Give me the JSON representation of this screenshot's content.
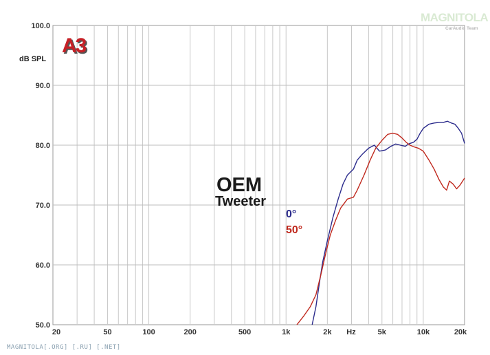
{
  "chart_data": {
    "type": "line",
    "title": "",
    "xscale": "log",
    "xlim": [
      20,
      20000
    ],
    "ylim": [
      50,
      100
    ],
    "ylabel": "dB SPL",
    "xunit_label": "Hz",
    "grid": true,
    "y_ticks": [
      "100.0",
      "90.0",
      "80.0",
      "70.0",
      "60.0",
      "50.0"
    ],
    "x_ticks": [
      {
        "v": 20,
        "label": "20"
      },
      {
        "v": 50,
        "label": "50"
      },
      {
        "v": 100,
        "label": "100"
      },
      {
        "v": 200,
        "label": "200"
      },
      {
        "v": 500,
        "label": "500"
      },
      {
        "v": 1000,
        "label": "1k"
      },
      {
        "v": 2000,
        "label": "2k"
      },
      {
        "v": 5000,
        "label": "5k"
      },
      {
        "v": 10000,
        "label": "10k"
      },
      {
        "v": 20000,
        "label": "20k"
      }
    ],
    "series": [
      {
        "name": "0°",
        "color": "#2b2b8c",
        "points": [
          [
            1550,
            50
          ],
          [
            1650,
            53
          ],
          [
            1750,
            57
          ],
          [
            1850,
            60.5
          ],
          [
            2000,
            64
          ],
          [
            2200,
            68
          ],
          [
            2400,
            71
          ],
          [
            2600,
            73.5
          ],
          [
            2800,
            75
          ],
          [
            3100,
            76
          ],
          [
            3300,
            77.5
          ],
          [
            3600,
            78.5
          ],
          [
            4000,
            79.5
          ],
          [
            4400,
            80
          ],
          [
            4800,
            79
          ],
          [
            5300,
            79.2
          ],
          [
            5800,
            79.8
          ],
          [
            6300,
            80.2
          ],
          [
            6800,
            80
          ],
          [
            7400,
            79.8
          ],
          [
            7800,
            80.2
          ],
          [
            8500,
            80.5
          ],
          [
            9000,
            81
          ],
          [
            9500,
            82
          ],
          [
            10000,
            82.8
          ],
          [
            11000,
            83.5
          ],
          [
            12000,
            83.7
          ],
          [
            13000,
            83.8
          ],
          [
            14000,
            83.8
          ],
          [
            15000,
            84
          ],
          [
            16000,
            83.7
          ],
          [
            17000,
            83.5
          ],
          [
            18000,
            82.8
          ],
          [
            19000,
            82
          ],
          [
            20000,
            80.3
          ]
        ]
      },
      {
        "name": "50°",
        "color": "#c0291e",
        "points": [
          [
            1200,
            50
          ],
          [
            1350,
            51.5
          ],
          [
            1500,
            53
          ],
          [
            1650,
            55
          ],
          [
            1800,
            58.5
          ],
          [
            1950,
            62
          ],
          [
            2100,
            65
          ],
          [
            2300,
            67.5
          ],
          [
            2500,
            69.5
          ],
          [
            2800,
            71
          ],
          [
            3100,
            71.3
          ],
          [
            3300,
            72.5
          ],
          [
            3700,
            75
          ],
          [
            4100,
            77.5
          ],
          [
            4500,
            79.5
          ],
          [
            5000,
            80.8
          ],
          [
            5500,
            81.8
          ],
          [
            6000,
            82
          ],
          [
            6500,
            81.8
          ],
          [
            7000,
            81.2
          ],
          [
            7500,
            80.5
          ],
          [
            8000,
            80
          ],
          [
            8600,
            79.7
          ],
          [
            9200,
            79.5
          ],
          [
            10000,
            79
          ],
          [
            11000,
            77.5
          ],
          [
            12000,
            76
          ],
          [
            13000,
            74.3
          ],
          [
            14000,
            73
          ],
          [
            14800,
            72.5
          ],
          [
            15500,
            74
          ],
          [
            16500,
            73.5
          ],
          [
            17500,
            72.7
          ],
          [
            18500,
            73.3
          ],
          [
            20000,
            74.5
          ]
        ]
      }
    ],
    "annotations": {
      "main": "OEM",
      "sub": "Tweeter"
    },
    "badge": "A3"
  },
  "branding": {
    "logo": "MAGNITOLA",
    "logo_sub": "CarAudio Team",
    "footer": "MAGNITOLA[.ORG] [.RU] [.NET]"
  }
}
